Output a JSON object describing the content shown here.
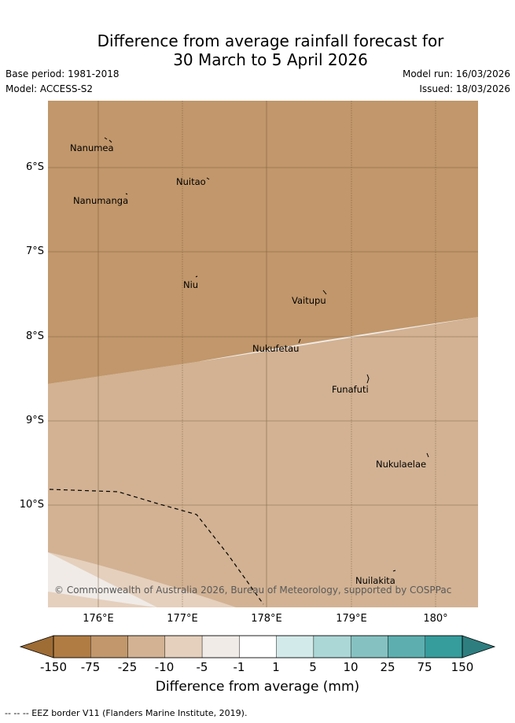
{
  "header": {
    "title_line1": "Difference from average rainfall forecast for",
    "title_line2": "30 March to 5 April 2026",
    "base_period": "Base period: 1981-2018",
    "model": "Model: ACCESS-S2",
    "model_run": "Model run: 16/03/2026",
    "issued": "Issued: 18/03/2026"
  },
  "map": {
    "lat_range": [
      -11.3,
      -5.3
    ],
    "lon_range": [
      175.42,
      180.5
    ],
    "lat_ticks": [
      "6°S",
      "7°S",
      "8°S",
      "9°S",
      "10°S"
    ],
    "lon_ticks": [
      "176°E",
      "177°E",
      "178°E",
      "179°E",
      "180°"
    ],
    "places": [
      {
        "name": "Nanumea",
        "lon": 176.12,
        "lat": -5.67
      },
      {
        "name": "Nuitao",
        "lon": 177.33,
        "lat": -6.11
      },
      {
        "name": "Nanumanga",
        "lon": 176.32,
        "lat": -6.29
      },
      {
        "name": "Niu",
        "lon": 177.16,
        "lat": -7.29
      },
      {
        "name": "Vaitupu",
        "lon": 178.68,
        "lat": -7.49
      },
      {
        "name": "Nukufetau",
        "lon": 178.38,
        "lat": -8.03
      },
      {
        "name": "Funafuti",
        "lon": 179.2,
        "lat": -8.5
      },
      {
        "name": "Nukulaelae",
        "lon": 179.83,
        "lat": -9.4
      },
      {
        "name": "Nuilakita",
        "lon": 179.52,
        "lat": -10.8
      }
    ],
    "zones": [
      {
        "category": "-75 to -25 mm",
        "color": "#c1976b"
      },
      {
        "category": "-25 to -10 mm",
        "color": "#d2b293"
      },
      {
        "category": "-10 to -5 mm",
        "color": "#e5d0bd"
      },
      {
        "category": "-5 to -1 mm",
        "color": "#f0ebe7"
      }
    ],
    "copyright": "© Commonwealth of Australia 2026, Bureau of Meteorology, supported by COSPPac"
  },
  "colorbar": {
    "title": "Difference from average (mm)",
    "labels": [
      "-150",
      "-75",
      "-25",
      "-10",
      "-5",
      "-1",
      "1",
      "5",
      "10",
      "25",
      "75",
      "150"
    ],
    "colors": [
      "#b07c43",
      "#c1976b",
      "#d2b293",
      "#e5d0bd",
      "#f0ebe7",
      "#ffffff",
      "#d3eaea",
      "#acd7d7",
      "#86c1c1",
      "#5dafaf",
      "#369c9c"
    ],
    "under_color": "#9e6c35",
    "over_color": "#2e7e80"
  },
  "footnote": "-- -- -- EEZ border V11 (Flanders Marine Institute, 2019)."
}
